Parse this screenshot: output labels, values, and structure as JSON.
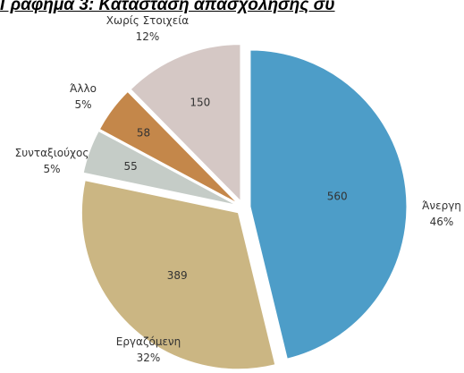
{
  "chart_data": {
    "type": "pie",
    "title": "Γράφημα 3: Κατάσταση απασχόλησης συ",
    "slices": [
      {
        "label": "Άνεργη",
        "value": 560,
        "percent": "46%",
        "color": "#4d9dc8"
      },
      {
        "label": "Εργαζόμενη",
        "value": 389,
        "percent": "32%",
        "color": "#cbb683"
      },
      {
        "label": "Συνταξιούχος",
        "value": 55,
        "percent": "5%",
        "color": "#c5ccc7"
      },
      {
        "label": "Άλλο",
        "value": 58,
        "percent": "5%",
        "color": "#c4874a"
      },
      {
        "label": "Χωρίς Στοιχεία",
        "value": 150,
        "percent": "12%",
        "color": "#d5c8c5"
      }
    ],
    "exploded": true,
    "legend": "none"
  }
}
